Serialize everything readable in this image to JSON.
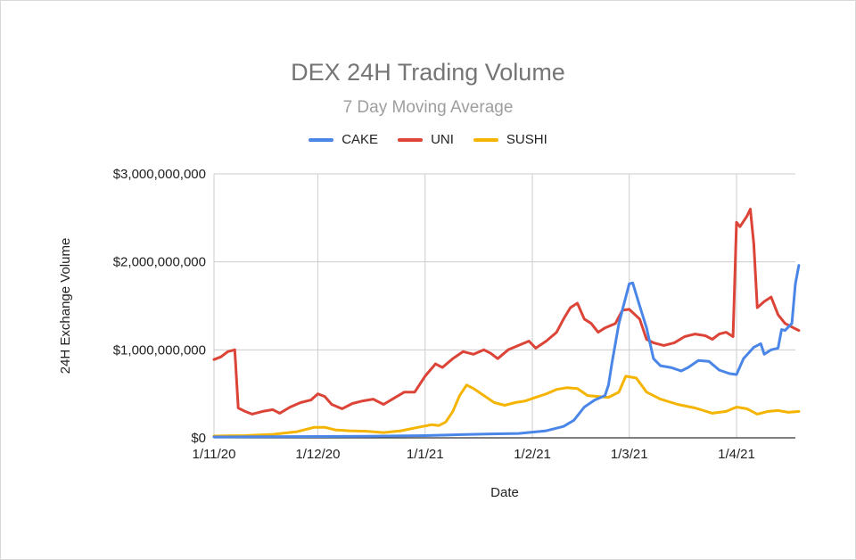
{
  "chart_data": {
    "type": "line",
    "title": "DEX 24H Trading Volume",
    "subtitle": "7 Day Moving Average",
    "xlabel": "Date",
    "ylabel": "24H Exchange Volume",
    "ylim": [
      0,
      3000000000
    ],
    "xlim": [
      "2020-11-01",
      "2021-04-18"
    ],
    "grid": true,
    "legend": "top",
    "y_ticks": [
      {
        "value": 0,
        "label": "$0"
      },
      {
        "value": 1000000000,
        "label": "$1,000,000,000"
      },
      {
        "value": 2000000000,
        "label": "$2,000,000,000"
      },
      {
        "value": 3000000000,
        "label": "$3,000,000,000"
      }
    ],
    "x_ticks": [
      {
        "date": "2020-11-01",
        "label": "1/11/20"
      },
      {
        "date": "2020-12-01",
        "label": "1/12/20"
      },
      {
        "date": "2021-01-01",
        "label": "1/1/21"
      },
      {
        "date": "2021-02-01",
        "label": "1/2/21"
      },
      {
        "date": "2021-03-01",
        "label": "1/3/21"
      },
      {
        "date": "2021-04-01",
        "label": "1/4/21"
      }
    ],
    "series": [
      {
        "name": "CAKE",
        "color": "#4a86e8",
        "points": [
          [
            "2020-11-01",
            10000000
          ],
          [
            "2020-11-15",
            12000000
          ],
          [
            "2020-12-01",
            15000000
          ],
          [
            "2020-12-15",
            18000000
          ],
          [
            "2021-01-01",
            25000000
          ],
          [
            "2021-01-10",
            35000000
          ],
          [
            "2021-01-20",
            45000000
          ],
          [
            "2021-01-28",
            50000000
          ],
          [
            "2021-02-05",
            80000000
          ],
          [
            "2021-02-10",
            130000000
          ],
          [
            "2021-02-13",
            200000000
          ],
          [
            "2021-02-16",
            350000000
          ],
          [
            "2021-02-19",
            430000000
          ],
          [
            "2021-02-22",
            480000000
          ],
          [
            "2021-02-23",
            600000000
          ],
          [
            "2021-02-24",
            850000000
          ],
          [
            "2021-02-26",
            1300000000
          ],
          [
            "2021-02-28",
            1600000000
          ],
          [
            "2021-03-01",
            1750000000
          ],
          [
            "2021-03-02",
            1760000000
          ],
          [
            "2021-03-04",
            1500000000
          ],
          [
            "2021-03-06",
            1250000000
          ],
          [
            "2021-03-08",
            900000000
          ],
          [
            "2021-03-10",
            820000000
          ],
          [
            "2021-03-13",
            800000000
          ],
          [
            "2021-03-16",
            760000000
          ],
          [
            "2021-03-18",
            800000000
          ],
          [
            "2021-03-21",
            880000000
          ],
          [
            "2021-03-24",
            870000000
          ],
          [
            "2021-03-27",
            770000000
          ],
          [
            "2021-03-30",
            730000000
          ],
          [
            "2021-04-01",
            720000000
          ],
          [
            "2021-04-03",
            900000000
          ],
          [
            "2021-04-06",
            1030000000
          ],
          [
            "2021-04-08",
            1070000000
          ],
          [
            "2021-04-09",
            950000000
          ],
          [
            "2021-04-11",
            1000000000
          ],
          [
            "2021-04-13",
            1020000000
          ],
          [
            "2021-04-14",
            1230000000
          ],
          [
            "2021-04-15",
            1220000000
          ],
          [
            "2021-04-17",
            1300000000
          ],
          [
            "2021-04-18",
            1750000000
          ],
          [
            "2021-04-19",
            1960000000
          ]
        ]
      },
      {
        "name": "UNI",
        "color": "#db4437",
        "points": [
          [
            "2020-11-01",
            890000000
          ],
          [
            "2020-11-03",
            920000000
          ],
          [
            "2020-11-05",
            980000000
          ],
          [
            "2020-11-07",
            1000000000
          ],
          [
            "2020-11-08",
            340000000
          ],
          [
            "2020-11-10",
            300000000
          ],
          [
            "2020-11-12",
            270000000
          ],
          [
            "2020-11-15",
            300000000
          ],
          [
            "2020-11-18",
            320000000
          ],
          [
            "2020-11-20",
            280000000
          ],
          [
            "2020-11-23",
            350000000
          ],
          [
            "2020-11-26",
            400000000
          ],
          [
            "2020-11-29",
            430000000
          ],
          [
            "2020-12-01",
            500000000
          ],
          [
            "2020-12-03",
            470000000
          ],
          [
            "2020-12-05",
            380000000
          ],
          [
            "2020-12-08",
            330000000
          ],
          [
            "2020-12-11",
            390000000
          ],
          [
            "2020-12-14",
            420000000
          ],
          [
            "2020-12-17",
            440000000
          ],
          [
            "2020-12-20",
            380000000
          ],
          [
            "2020-12-23",
            450000000
          ],
          [
            "2020-12-26",
            520000000
          ],
          [
            "2020-12-29",
            520000000
          ],
          [
            "2021-01-01",
            700000000
          ],
          [
            "2021-01-04",
            840000000
          ],
          [
            "2021-01-06",
            800000000
          ],
          [
            "2021-01-09",
            900000000
          ],
          [
            "2021-01-12",
            980000000
          ],
          [
            "2021-01-15",
            950000000
          ],
          [
            "2021-01-18",
            1000000000
          ],
          [
            "2021-01-20",
            960000000
          ],
          [
            "2021-01-22",
            900000000
          ],
          [
            "2021-01-25",
            1000000000
          ],
          [
            "2021-01-28",
            1050000000
          ],
          [
            "2021-01-31",
            1100000000
          ],
          [
            "2021-02-02",
            1020000000
          ],
          [
            "2021-02-05",
            1100000000
          ],
          [
            "2021-02-08",
            1200000000
          ],
          [
            "2021-02-10",
            1350000000
          ],
          [
            "2021-02-12",
            1480000000
          ],
          [
            "2021-02-14",
            1530000000
          ],
          [
            "2021-02-16",
            1350000000
          ],
          [
            "2021-02-18",
            1300000000
          ],
          [
            "2021-02-20",
            1200000000
          ],
          [
            "2021-02-22",
            1250000000
          ],
          [
            "2021-02-25",
            1300000000
          ],
          [
            "2021-02-27",
            1450000000
          ],
          [
            "2021-03-01",
            1460000000
          ],
          [
            "2021-03-04",
            1350000000
          ],
          [
            "2021-03-06",
            1120000000
          ],
          [
            "2021-03-08",
            1080000000
          ],
          [
            "2021-03-11",
            1050000000
          ],
          [
            "2021-03-14",
            1080000000
          ],
          [
            "2021-03-17",
            1150000000
          ],
          [
            "2021-03-20",
            1180000000
          ],
          [
            "2021-03-23",
            1160000000
          ],
          [
            "2021-03-25",
            1120000000
          ],
          [
            "2021-03-27",
            1180000000
          ],
          [
            "2021-03-29",
            1200000000
          ],
          [
            "2021-03-31",
            1150000000
          ],
          [
            "2021-04-01",
            2450000000
          ],
          [
            "2021-04-02",
            2400000000
          ],
          [
            "2021-04-04",
            2520000000
          ],
          [
            "2021-04-05",
            2600000000
          ],
          [
            "2021-04-06",
            2200000000
          ],
          [
            "2021-04-07",
            1480000000
          ],
          [
            "2021-04-09",
            1550000000
          ],
          [
            "2021-04-11",
            1600000000
          ],
          [
            "2021-04-13",
            1400000000
          ],
          [
            "2021-04-15",
            1300000000
          ],
          [
            "2021-04-17",
            1260000000
          ],
          [
            "2021-04-19",
            1220000000
          ]
        ]
      },
      {
        "name": "SUSHI",
        "color": "#f4b400",
        "points": [
          [
            "2020-11-01",
            20000000
          ],
          [
            "2020-11-10",
            25000000
          ],
          [
            "2020-11-18",
            40000000
          ],
          [
            "2020-11-25",
            70000000
          ],
          [
            "2020-11-30",
            120000000
          ],
          [
            "2020-12-03",
            120000000
          ],
          [
            "2020-12-06",
            90000000
          ],
          [
            "2020-12-10",
            80000000
          ],
          [
            "2020-12-15",
            75000000
          ],
          [
            "2020-12-20",
            60000000
          ],
          [
            "2020-12-25",
            80000000
          ],
          [
            "2020-12-30",
            120000000
          ],
          [
            "2021-01-03",
            150000000
          ],
          [
            "2021-01-05",
            140000000
          ],
          [
            "2021-01-07",
            180000000
          ],
          [
            "2021-01-09",
            300000000
          ],
          [
            "2021-01-11",
            480000000
          ],
          [
            "2021-01-13",
            600000000
          ],
          [
            "2021-01-15",
            560000000
          ],
          [
            "2021-01-18",
            480000000
          ],
          [
            "2021-01-21",
            400000000
          ],
          [
            "2021-01-24",
            370000000
          ],
          [
            "2021-01-27",
            400000000
          ],
          [
            "2021-01-30",
            420000000
          ],
          [
            "2021-02-02",
            460000000
          ],
          [
            "2021-02-05",
            500000000
          ],
          [
            "2021-02-08",
            550000000
          ],
          [
            "2021-02-11",
            570000000
          ],
          [
            "2021-02-14",
            560000000
          ],
          [
            "2021-02-17",
            480000000
          ],
          [
            "2021-02-20",
            470000000
          ],
          [
            "2021-02-23",
            460000000
          ],
          [
            "2021-02-26",
            520000000
          ],
          [
            "2021-02-28",
            700000000
          ],
          [
            "2021-03-03",
            680000000
          ],
          [
            "2021-03-06",
            520000000
          ],
          [
            "2021-03-10",
            440000000
          ],
          [
            "2021-03-15",
            380000000
          ],
          [
            "2021-03-20",
            340000000
          ],
          [
            "2021-03-25",
            280000000
          ],
          [
            "2021-03-29",
            300000000
          ],
          [
            "2021-04-01",
            350000000
          ],
          [
            "2021-04-04",
            330000000
          ],
          [
            "2021-04-07",
            270000000
          ],
          [
            "2021-04-10",
            300000000
          ],
          [
            "2021-04-13",
            310000000
          ],
          [
            "2021-04-16",
            290000000
          ],
          [
            "2021-04-19",
            300000000
          ]
        ]
      }
    ]
  }
}
